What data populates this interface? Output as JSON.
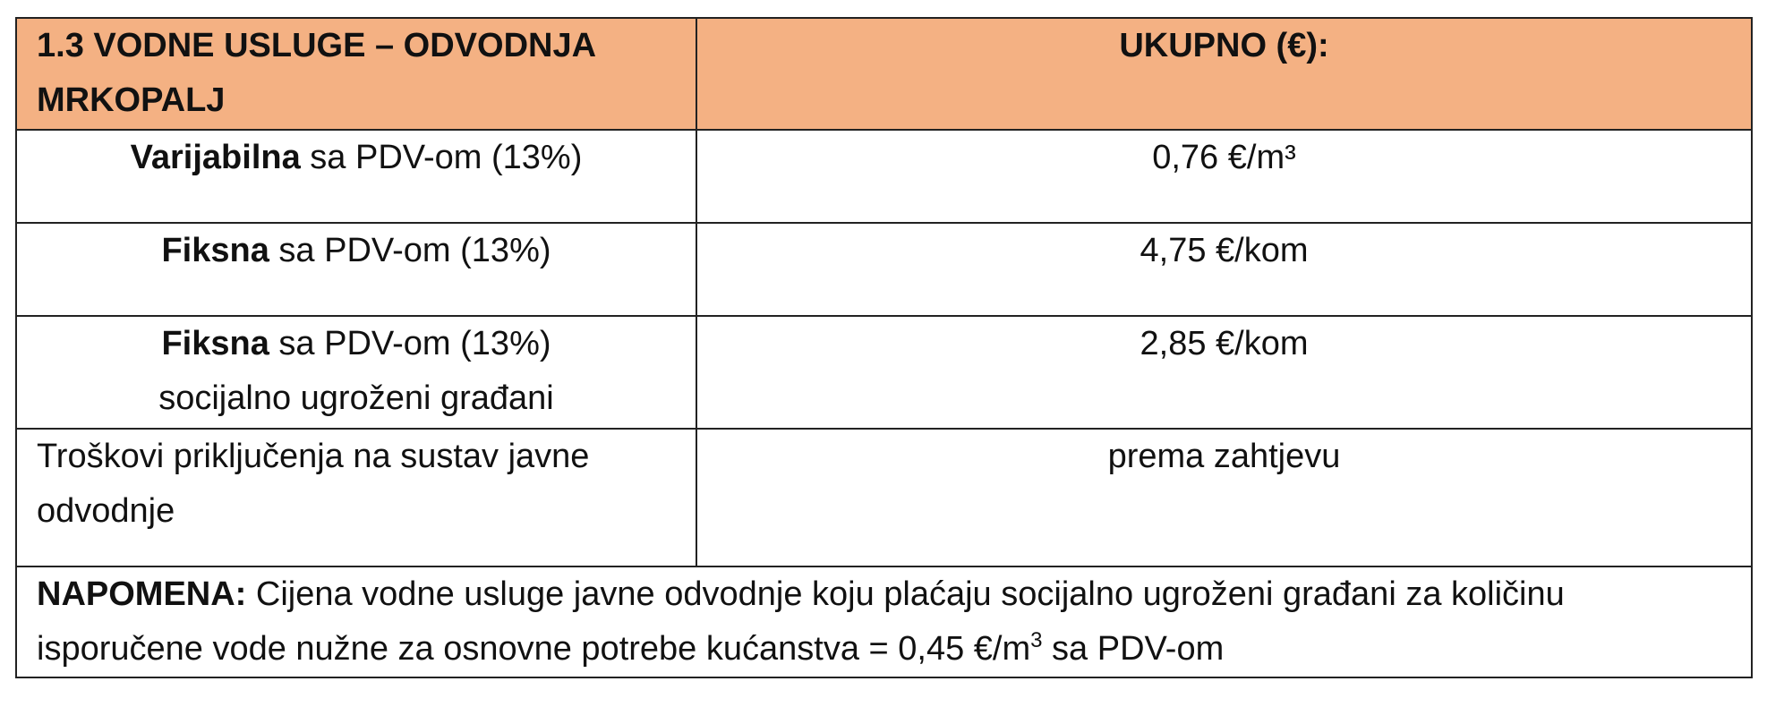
{
  "table": {
    "header": {
      "col1_line1": "1.3 VODNE USLUGE – ODVODNJA",
      "col1_line2": "MRKOPALJ",
      "col2": "UKUPNO (€):"
    },
    "rows": [
      {
        "label_bold": "Varijabilna",
        "label_rest": " sa PDV-om (13%)",
        "value": "0,76 €/m³"
      },
      {
        "label_bold": "Fiksna",
        "label_rest": " sa PDV-om (13%)",
        "value": "4,75 €/kom"
      },
      {
        "label_bold": "Fiksna",
        "label_rest": " sa PDV-om (13%)",
        "label_line2": "socijalno ugroženi građani",
        "value": "2,85 €/kom"
      },
      {
        "label_line1": "Troškovi priključenja na sustav javne",
        "label_line2": "odvodnje",
        "value": "prema zahtjevu"
      }
    ],
    "note": {
      "label": "NAPOMENA:",
      "text_line1": " Cijena vodne usluge javne odvodnje koju plaćaju socijalno ugroženi građani za količinu",
      "text_line2_before": "isporučene vode nužne za osnovne potrebe kućanstva = 0,45 €/m",
      "text_line2_sup": "3",
      "text_line2_after": " sa PDV-om"
    }
  }
}
